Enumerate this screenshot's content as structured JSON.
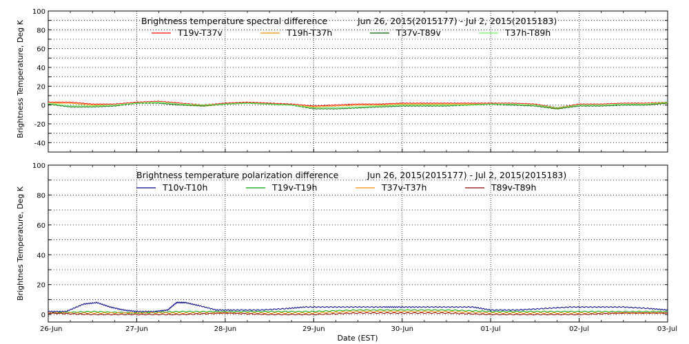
{
  "chart_data": [
    {
      "type": "line",
      "title": "Brightness temperature spectral difference",
      "date_range": "Jun 26, 2015(2015177) - Jul  2, 2015(2015183)",
      "ylabel": "Brightness Temperature, Deg K",
      "xlabel": "",
      "xlim": [
        0,
        7
      ],
      "ylim": [
        -50,
        100
      ],
      "yticks": [
        -40,
        -20,
        0,
        20,
        40,
        60,
        80,
        100
      ],
      "x_tick_labels": [
        "26-Jun",
        "27-Jun",
        "28-Jun",
        "29-Jun",
        "30-Jun",
        "01-Jul",
        "02-Jul",
        "03-Jul"
      ],
      "grid": true,
      "legend": "top",
      "series": [
        {
          "name": "T19v-T37v",
          "color": "#ff0000",
          "x": [
            0,
            0.25,
            0.5,
            0.75,
            1.0,
            1.25,
            1.5,
            1.75,
            2.0,
            2.25,
            2.5,
            2.75,
            3.0,
            3.25,
            3.5,
            3.75,
            4.0,
            4.25,
            4.5,
            4.75,
            5.0,
            5.25,
            5.5,
            5.75,
            6.0,
            6.25,
            6.5,
            6.75,
            7.0
          ],
          "values": [
            3,
            3,
            1,
            1,
            3,
            4,
            2,
            0,
            2,
            3,
            2,
            1,
            -1,
            0,
            1,
            1,
            2,
            2,
            2,
            2,
            2,
            2,
            1,
            -3,
            1,
            1,
            2,
            2,
            3
          ]
        },
        {
          "name": "T19h-T37h",
          "color": "#ff8c00",
          "x": [
            0,
            0.25,
            0.5,
            0.75,
            1.0,
            1.25,
            1.5,
            1.75,
            2.0,
            2.25,
            2.5,
            2.75,
            3.0,
            3.25,
            3.5,
            3.75,
            4.0,
            4.25,
            4.5,
            4.75,
            5.0,
            5.25,
            5.5,
            5.75,
            6.0,
            6.25,
            6.5,
            6.75,
            7.0
          ],
          "values": [
            2,
            2,
            0,
            0,
            2,
            3,
            1,
            -1,
            1,
            2,
            1,
            0,
            -2,
            -1,
            0,
            0,
            1,
            1,
            1,
            1,
            1,
            1,
            0,
            -4,
            0,
            0,
            1,
            1,
            2
          ]
        },
        {
          "name": "T37v-T89v",
          "color": "#006400",
          "x": [
            0,
            0.25,
            0.5,
            0.75,
            1.0,
            1.25,
            1.5,
            1.75,
            2.0,
            2.25,
            2.5,
            2.75,
            3.0,
            3.25,
            3.5,
            3.75,
            4.0,
            4.25,
            4.5,
            4.75,
            5.0,
            5.25,
            5.5,
            5.75,
            6.0,
            6.25,
            6.5,
            6.75,
            7.0
          ],
          "values": [
            1,
            -2,
            -2,
            -1,
            2,
            2,
            0,
            -1,
            1,
            2,
            1,
            0,
            -4,
            -4,
            -3,
            -2,
            -1,
            -1,
            -1,
            0,
            1,
            0,
            -1,
            -4,
            -1,
            -1,
            0,
            0,
            2
          ]
        },
        {
          "name": "T37h-T89h",
          "color": "#66ff66",
          "x": [
            0,
            0.25,
            0.5,
            0.75,
            1.0,
            1.25,
            1.5,
            1.75,
            2.0,
            2.25,
            2.5,
            2.75,
            3.0,
            3.25,
            3.5,
            3.75,
            4.0,
            4.25,
            4.5,
            4.75,
            5.0,
            5.25,
            5.5,
            5.75,
            6.0,
            6.25,
            6.5,
            6.75,
            7.0
          ],
          "values": [
            2,
            -1,
            -1,
            0,
            2,
            3,
            1,
            0,
            1,
            2,
            1,
            0,
            -3,
            -3,
            -2,
            -1,
            0,
            0,
            0,
            0,
            1,
            1,
            0,
            -3,
            0,
            0,
            1,
            1,
            3
          ]
        }
      ]
    },
    {
      "type": "line",
      "title": "Brightness temperature polarization difference",
      "date_range": "Jun 26, 2015(2015177) - Jul  2, 2015(2015183)",
      "ylabel": "Brightnes Temperature, Deg K",
      "xlabel": "Date (EST)",
      "xlim": [
        0,
        7
      ],
      "ylim": [
        -5,
        100
      ],
      "yticks": [
        0,
        20,
        40,
        60,
        80,
        100
      ],
      "x_tick_labels": [
        "26-Jun",
        "27-Jun",
        "28-Jun",
        "29-Jun",
        "30-Jun",
        "01-Jul",
        "02-Jul",
        "03-Jul"
      ],
      "grid": true,
      "legend": "top",
      "series": [
        {
          "name": "T10v-T10h",
          "color": "#00008b",
          "x": [
            0,
            0.2,
            0.4,
            0.55,
            0.7,
            0.85,
            1.0,
            1.2,
            1.35,
            1.45,
            1.55,
            1.7,
            1.9,
            2.1,
            2.4,
            2.7,
            2.9,
            3.2,
            3.5,
            3.8,
            3.95,
            4.2,
            4.5,
            4.8,
            5.0,
            5.3,
            5.6,
            5.9,
            6.2,
            6.5,
            6.8,
            7.0
          ],
          "values": [
            2,
            2,
            7,
            8,
            5,
            3,
            2,
            2,
            3,
            8,
            8,
            6,
            3,
            3,
            3,
            4,
            5,
            5,
            5,
            5,
            5,
            5,
            5,
            5,
            3,
            3,
            4,
            5,
            5,
            5,
            4,
            3
          ]
        },
        {
          "name": "T19v-T19h",
          "color": "#00a000",
          "x": [
            0,
            0.5,
            1.0,
            1.5,
            2.0,
            2.5,
            3.0,
            3.5,
            4.0,
            4.5,
            5.0,
            5.5,
            6.0,
            6.5,
            7.0
          ],
          "values": [
            1,
            2,
            1,
            2,
            2,
            2,
            2,
            3,
            3,
            3,
            2,
            2,
            2,
            2,
            2
          ]
        },
        {
          "name": "T37v-T37h",
          "color": "#ff8c00",
          "x": [
            0,
            0.5,
            1.0,
            1.5,
            2.0,
            2.5,
            3.0,
            3.5,
            4.0,
            4.5,
            5.0,
            5.5,
            6.0,
            6.5,
            7.0
          ],
          "values": [
            1,
            1,
            1,
            1,
            1,
            1,
            1,
            2,
            2,
            2,
            1,
            1,
            1,
            1,
            1
          ]
        },
        {
          "name": "T89v-T89h",
          "color": "#8b0000",
          "x": [
            0,
            0.5,
            1.0,
            1.5,
            2.0,
            2.5,
            3.0,
            3.5,
            4.0,
            4.5,
            5.0,
            5.5,
            6.0,
            6.5,
            7.0
          ],
          "values": [
            1,
            0,
            0,
            0,
            1,
            0,
            0,
            1,
            1,
            1,
            0,
            0,
            0,
            1,
            1
          ]
        }
      ]
    }
  ]
}
